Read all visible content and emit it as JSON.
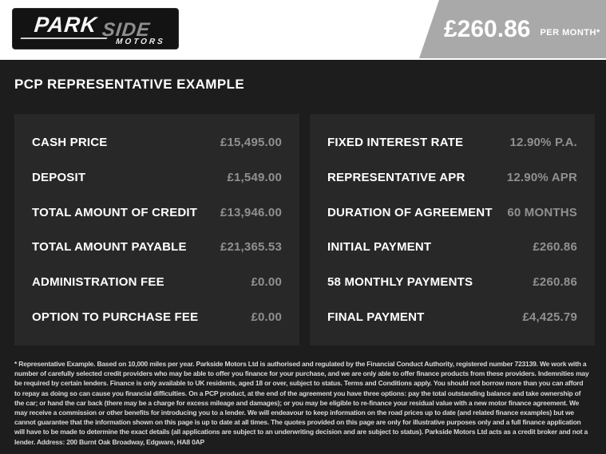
{
  "logo": {
    "part_park": "PARK",
    "part_side": "SIDE",
    "part_motors": "MOTORS"
  },
  "price_banner": {
    "amount": "£260.86",
    "period": "PER MONTH*"
  },
  "heading": "PCP REPRESENTATIVE EXAMPLE",
  "panels": [
    {
      "rows": [
        {
          "label": "CASH PRICE",
          "value": "£15,495.00"
        },
        {
          "label": "DEPOSIT",
          "value": "£1,549.00"
        },
        {
          "label": "TOTAL AMOUNT OF CREDIT",
          "value": "£13,946.00"
        },
        {
          "label": "TOTAL AMOUNT PAYABLE",
          "value": "£21,365.53"
        },
        {
          "label": "ADMINISTRATION FEE",
          "value": "£0.00"
        },
        {
          "label": "OPTION TO PURCHASE FEE",
          "value": "£0.00"
        }
      ]
    },
    {
      "rows": [
        {
          "label": "FIXED INTEREST RATE",
          "value": "12.90% P.A."
        },
        {
          "label": "REPRESENTATIVE APR",
          "value": "12.90% APR"
        },
        {
          "label": "DURATION OF AGREEMENT",
          "value": "60 MONTHS"
        },
        {
          "label": "INITIAL PAYMENT",
          "value": "£260.86"
        },
        {
          "label": "58 MONTHLY PAYMENTS",
          "value": "£260.86"
        },
        {
          "label": "FINAL PAYMENT",
          "value": "£4,425.79"
        }
      ]
    }
  ],
  "disclaimer": "* Representative Example. Based on 10,000 miles per year. Parkside Motors Ltd is authorised and regulated by the Financial Conduct Authority, registered number 723139. We work with a number of carefully selected credit providers who may be able to offer you finance for your purchase, and we are only able to offer finance products from these providers. Indemnities may be required by certain lenders. Finance is only available to UK residents, aged 18 or over, subject to status. Terms and Conditions apply. You should not borrow more than you can afford to repay as doing so can cause you financial difficulties. On a PCP product, at the end of the agreement you have three options: pay the total outstanding balance and take ownership of the car; or hand the car back (there may be a charge for excess mileage and damages); or you may be eligible to re-finance your residual value with a new motor finance agreement. We may receive a commission or other benefits for introducing you to a lender. We will endeavour to keep information on the road prices up to date (and related finance examples) but we cannot guarantee that the information shown on this page is up to date at all times. The quotes provided on this page are only for illustrative purposes only and a full finance application will have to be made to determine the exact details (all applications are subject to an underwriting decision and are subject to status). Parkside Motors Ltd acts as a credit broker and not a lender. Address: 200 Burnt Oak Broadway, Edgware, HA8 0AP",
  "colors": {
    "page_bg": "#1D1D1D",
    "panel_bg": "#282828",
    "topbar_bg": "#FFFFFF",
    "banner_gray": "#A9A9A9",
    "logo_bg": "#131313",
    "label_white": "#FFFFFF",
    "value_gray": "#909090"
  }
}
